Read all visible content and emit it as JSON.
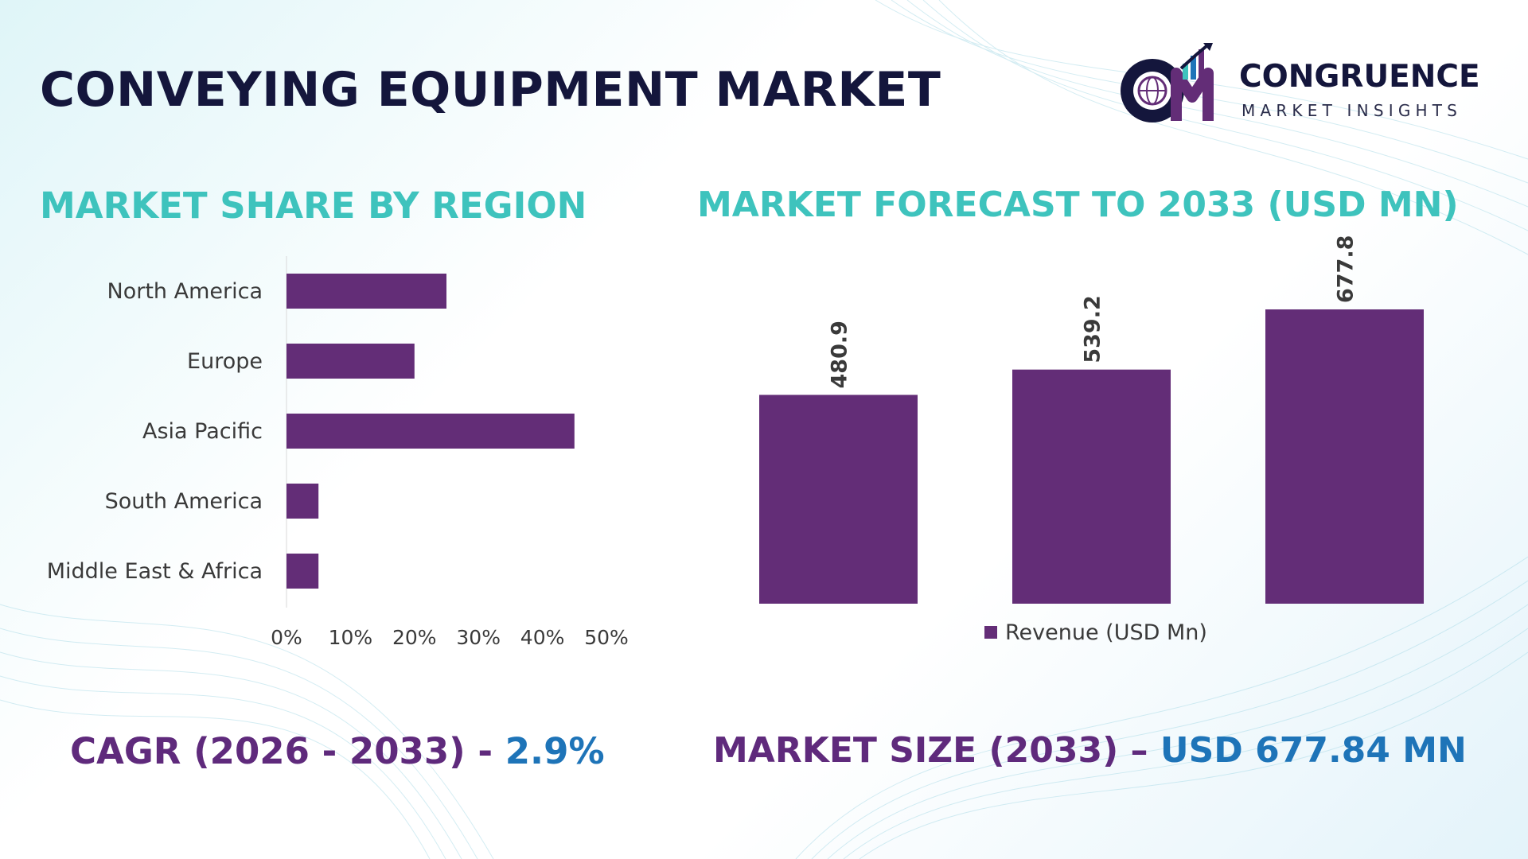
{
  "title": "CONVEYING EQUIPMENT MARKET",
  "logo": {
    "name": "CONGRUENCE",
    "subtitle": "MARKET INSIGHTS",
    "icon": "cm-globe-logo-icon"
  },
  "colors": {
    "bar": "#632d77",
    "title_dark": "#14163c",
    "section_teal": "#3ec3bd",
    "stat_purple": "#5f2a7c",
    "stat_blue": "#1e74b8"
  },
  "sections": {
    "left_title": "MARKET SHARE BY REGION",
    "right_title": "MARKET FORECAST TO 2033 (USD MN)"
  },
  "stats": {
    "cagr_label": "CAGR (2026 - 2033) - ",
    "cagr_value": "2.9%",
    "size_label": "MARKET SIZE (2033) – ",
    "size_value": "USD 677.84 MN"
  },
  "chart_data": [
    {
      "type": "bar",
      "orientation": "horizontal",
      "title": "MARKET SHARE BY REGION",
      "categories": [
        "North America",
        "Europe",
        "Asia Pacific",
        "South America",
        "Middle East & Africa"
      ],
      "values": [
        25,
        20,
        45,
        5,
        5
      ],
      "xlim": [
        0,
        50
      ],
      "xticks": [
        "0%",
        "10%",
        "20%",
        "30%",
        "40%",
        "50%"
      ],
      "grid": false
    },
    {
      "type": "bar",
      "orientation": "vertical",
      "title": "MARKET FORECAST TO 2033 (USD MN)",
      "categories": [
        "",
        "",
        ""
      ],
      "series": [
        {
          "name": "Revenue (USD Mn)",
          "values": [
            480.9,
            539.2,
            677.8
          ]
        }
      ],
      "data_labels": [
        "480.9",
        "539.2",
        "677.8"
      ],
      "ylim": [
        0,
        677.8
      ],
      "legend": "bottom",
      "grid": false
    }
  ]
}
